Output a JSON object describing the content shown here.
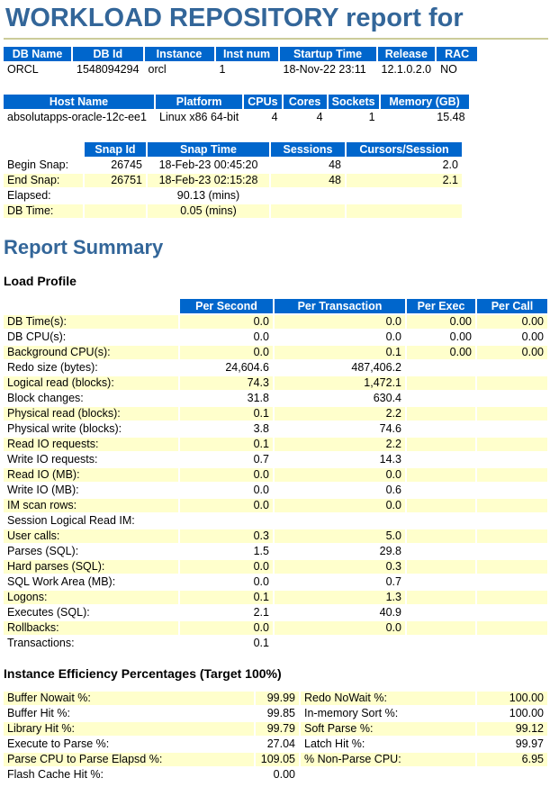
{
  "page": {
    "title": "WORKLOAD REPOSITORY report for"
  },
  "sections": {
    "report_summary": "Report Summary",
    "load_profile": "Load Profile",
    "instance_efficiency": "Instance Efficiency Percentages (Target 100%)"
  },
  "colors": {
    "header_bg": "#0066CC",
    "row_shade": "#FFFFCC",
    "title_blue": "#336699",
    "title_rule": "#CCCC99"
  },
  "tables": {
    "db_info": {
      "headers": [
        "DB Name",
        "DB Id",
        "Instance",
        "Inst num",
        "Startup Time",
        "Release",
        "RAC"
      ],
      "rows": [
        [
          "ORCL",
          "1548094294",
          "orcl",
          "1",
          "18-Nov-22 23:11",
          "12.1.0.2.0",
          "NO"
        ]
      ]
    },
    "host": {
      "headers": [
        "Host Name",
        "Platform",
        "CPUs",
        "Cores",
        "Sockets",
        "Memory (GB)"
      ],
      "rows": [
        [
          "absolutapps-oracle-12c-ee1",
          "Linux x86 64-bit",
          "4",
          "4",
          "1",
          "15.48"
        ]
      ]
    },
    "snapshot": {
      "headers": [
        "",
        "Snap Id",
        "Snap Time",
        "Sessions",
        "Cursors/Session"
      ],
      "rows": [
        [
          "Begin Snap:",
          "26745",
          "18-Feb-23 00:45:20",
          "48",
          "2.0"
        ],
        [
          "End Snap:",
          "26751",
          "18-Feb-23 02:15:28",
          "48",
          "2.1"
        ],
        [
          "Elapsed:",
          "",
          "90.13 (mins)",
          "",
          ""
        ],
        [
          "DB Time:",
          "",
          "0.05 (mins)",
          "",
          ""
        ]
      ]
    },
    "load_profile": {
      "headers": [
        "",
        "Per Second",
        "Per Transaction",
        "Per Exec",
        "Per Call"
      ],
      "rows": [
        [
          "DB Time(s):",
          "0.0",
          "0.0",
          "0.00",
          "0.00"
        ],
        [
          "DB CPU(s):",
          "0.0",
          "0.0",
          "0.00",
          "0.00"
        ],
        [
          "Background CPU(s):",
          "0.0",
          "0.1",
          "0.00",
          "0.00"
        ],
        [
          "Redo size (bytes):",
          "24,604.6",
          "487,406.2",
          "",
          ""
        ],
        [
          "Logical read (blocks):",
          "74.3",
          "1,472.1",
          "",
          ""
        ],
        [
          "Block changes:",
          "31.8",
          "630.4",
          "",
          ""
        ],
        [
          "Physical read (blocks):",
          "0.1",
          "2.2",
          "",
          ""
        ],
        [
          "Physical write (blocks):",
          "3.8",
          "74.6",
          "",
          ""
        ],
        [
          "Read IO requests:",
          "0.1",
          "2.2",
          "",
          ""
        ],
        [
          "Write IO requests:",
          "0.7",
          "14.3",
          "",
          ""
        ],
        [
          "Read IO (MB):",
          "0.0",
          "0.0",
          "",
          ""
        ],
        [
          "Write IO (MB):",
          "0.0",
          "0.6",
          "",
          ""
        ],
        [
          "IM scan rows:",
          "0.0",
          "0.0",
          "",
          ""
        ],
        [
          "Session Logical Read IM:",
          "",
          "",
          "",
          ""
        ],
        [
          "User calls:",
          "0.3",
          "5.0",
          "",
          ""
        ],
        [
          "Parses (SQL):",
          "1.5",
          "29.8",
          "",
          ""
        ],
        [
          "Hard parses (SQL):",
          "0.0",
          "0.3",
          "",
          ""
        ],
        [
          "SQL Work Area (MB):",
          "0.0",
          "0.7",
          "",
          ""
        ],
        [
          "Logons:",
          "0.1",
          "1.3",
          "",
          ""
        ],
        [
          "Executes (SQL):",
          "2.1",
          "40.9",
          "",
          ""
        ],
        [
          "Rollbacks:",
          "0.0",
          "0.0",
          "",
          ""
        ],
        [
          "Transactions:",
          "0.1",
          "",
          "",
          ""
        ]
      ]
    },
    "instance_efficiency": {
      "headers": [],
      "rows": [
        [
          "Buffer Nowait %:",
          "99.99",
          "Redo NoWait %:",
          "100.00"
        ],
        [
          "Buffer Hit %:",
          "99.85",
          "In-memory Sort %:",
          "100.00"
        ],
        [
          "Library Hit %:",
          "99.79",
          "Soft Parse %:",
          "99.12"
        ],
        [
          "Execute to Parse %:",
          "27.04",
          "Latch Hit %:",
          "99.97"
        ],
        [
          "Parse CPU to Parse Elapsd %:",
          "109.05",
          "% Non-Parse CPU:",
          "6.95"
        ],
        [
          "Flash Cache Hit %:",
          "0.00",
          "",
          ""
        ]
      ]
    }
  }
}
